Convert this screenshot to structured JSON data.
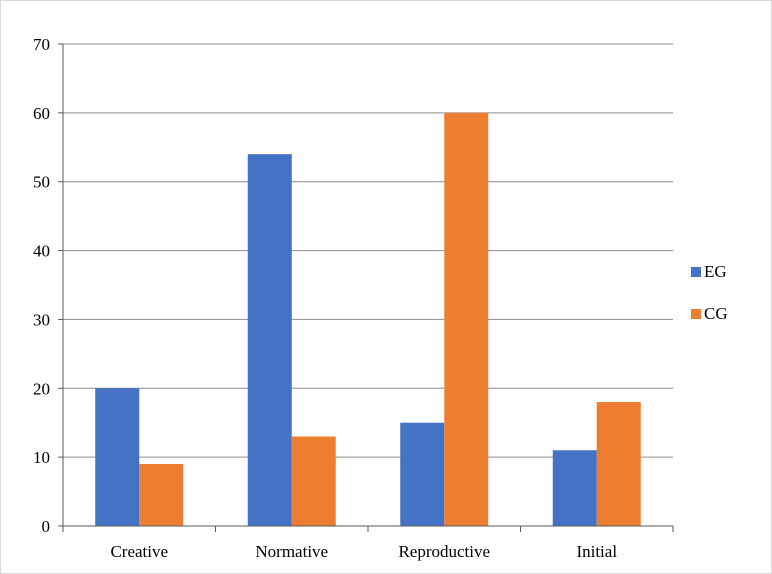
{
  "chart_data": {
    "type": "bar",
    "categories": [
      "Creative",
      "Normative",
      "Reproductive",
      "Initial"
    ],
    "series": [
      {
        "name": "EG",
        "values": [
          20,
          54,
          15,
          11
        ],
        "color": "#4472c4"
      },
      {
        "name": "CG",
        "values": [
          9,
          13,
          60,
          18
        ],
        "color": "#ed7d31"
      }
    ],
    "ylim": [
      0,
      70
    ],
    "yticks": [
      0,
      10,
      20,
      30,
      40,
      50,
      60,
      70
    ],
    "grid": true,
    "legend_position": "right",
    "title": "",
    "xlabel": "",
    "ylabel": ""
  }
}
